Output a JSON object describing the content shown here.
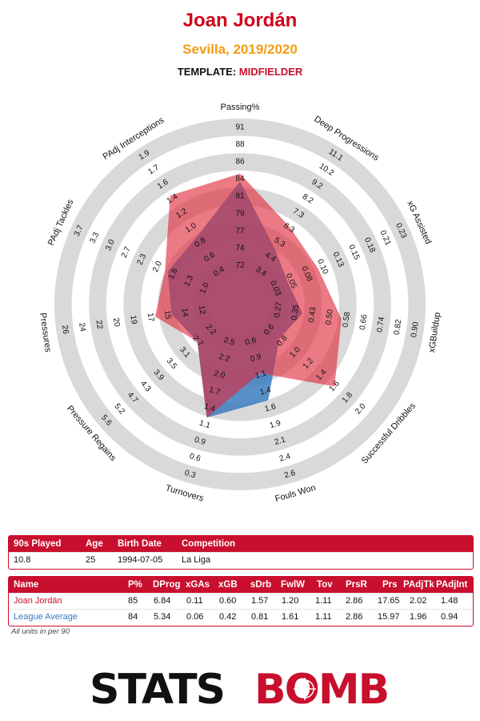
{
  "header": {
    "player": "Joan Jordán",
    "team_season": "Sevilla, 2019/2020",
    "template_label": "TEMPLATE:",
    "template_value": "MIDFIELDER"
  },
  "colors": {
    "player": "#e0283a",
    "average": "#3a7bbf",
    "ring": "#d9d9d9",
    "accent": "#c8102e",
    "subtitle": "#f39c12"
  },
  "chart_data": {
    "type": "radar",
    "title": "Joan Jordán",
    "axes": [
      {
        "label": "Passing%",
        "ticks": [
          "72",
          "74",
          "77",
          "79",
          "81",
          "84",
          "86",
          "88",
          "91"
        ],
        "range": [
          70,
          92
        ]
      },
      {
        "label": "Deep Progressions",
        "ticks": [
          "3.4",
          "4.4",
          "5.3",
          "6.3",
          "7.3",
          "8.2",
          "9.2",
          "10.2",
          "11.1"
        ],
        "range": [
          2.4,
          12.1
        ]
      },
      {
        "label": "xG Assisted",
        "ticks": [
          "0.03",
          "0.05",
          "0.08",
          "0.10",
          "0.13",
          "0.15",
          "0.18",
          "0.21",
          "0.23"
        ],
        "range": [
          0.0,
          0.26
        ]
      },
      {
        "label": "xGBuildup",
        "ticks": [
          "0.27",
          "0.35",
          "0.43",
          "0.50",
          "0.58",
          "0.66",
          "0.74",
          "0.82",
          "0.90"
        ],
        "range": [
          0.19,
          0.98
        ]
      },
      {
        "label": "Successful Dribbles",
        "ticks": [
          "0.6",
          "0.8",
          "1.0",
          "1.2",
          "1.4",
          "1.6",
          "1.8",
          "2.0"
        ],
        "range": [
          0.4,
          2.2
        ]
      },
      {
        "label": "Fouls Won",
        "ticks": [
          "0.6",
          "0.9",
          "1.1",
          "1.4",
          "1.6",
          "1.9",
          "2.1",
          "2.4",
          "2.6"
        ],
        "range": [
          0.35,
          2.85
        ]
      },
      {
        "label": "Turnovers",
        "ticks": [
          "2.5",
          "2.2",
          "2.0",
          "1.7",
          "1.4",
          "1.1",
          "0.9",
          "0.6",
          "0.3"
        ],
        "range": [
          2.75,
          0.05
        ]
      },
      {
        "label": "Pressure Regains",
        "ticks": [
          "2.2",
          "2.7",
          "3.1",
          "3.5",
          "3.9",
          "4.3",
          "4.7",
          "5.2",
          "5.6"
        ],
        "range": [
          1.8,
          6.0
        ]
      },
      {
        "label": "Pressures",
        "ticks": [
          "12",
          "14",
          "15",
          "17",
          "19",
          "20",
          "22",
          "24",
          "26"
        ],
        "range": [
          10.3,
          27.7
        ]
      },
      {
        "label": "PAdj Tackles",
        "ticks": [
          "1.0",
          "1.3",
          "1.6",
          "2.0",
          "2.3",
          "2.7",
          "3.0",
          "3.3",
          "3.7"
        ],
        "range": [
          0.65,
          4.05
        ]
      },
      {
        "label": "PAdj Interceptions",
        "ticks": [
          "0.4",
          "0.6",
          "0.8",
          "1.0",
          "1.2",
          "1.4",
          "1.6",
          "1.7",
          "1.9"
        ],
        "range": [
          0.2,
          2.1
        ]
      }
    ],
    "series": [
      {
        "name": "Joan Jordán",
        "values": [
          85,
          6.84,
          0.11,
          0.6,
          1.57,
          1.2,
          1.11,
          2.86,
          17.65,
          2.02,
          1.48
        ]
      },
      {
        "name": "League Average",
        "values": [
          84,
          5.34,
          0.06,
          0.42,
          0.81,
          1.61,
          1.11,
          2.86,
          15.97,
          1.96,
          0.94
        ]
      }
    ],
    "rings": 5,
    "legend": "none"
  },
  "info_table": {
    "headers": [
      "90s Played",
      "Age",
      "Birth Date",
      "Competition"
    ],
    "row": [
      "10.8",
      "25",
      "1994-07-05",
      "La Liga"
    ]
  },
  "stats_table": {
    "headers": [
      "Name",
      "P%",
      "DProg",
      "xGAs",
      "xGB",
      "sDrb",
      "FwlW",
      "Tov",
      "PrsR",
      "Prs",
      "PAdjTk",
      "PAdjInt"
    ],
    "rows": [
      [
        "Joan Jordán",
        "85",
        "6.84",
        "0.11",
        "0.60",
        "1.57",
        "1.20",
        "1.11",
        "2.86",
        "17.65",
        "2.02",
        "1.48"
      ],
      [
        "League Average",
        "84",
        "5.34",
        "0.06",
        "0.42",
        "0.81",
        "1.61",
        "1.11",
        "2.86",
        "15.97",
        "1.96",
        "0.94"
      ]
    ]
  },
  "footnote": "All units in per 90",
  "logo": {
    "part1": "STATS",
    "part2": "BOMB"
  }
}
